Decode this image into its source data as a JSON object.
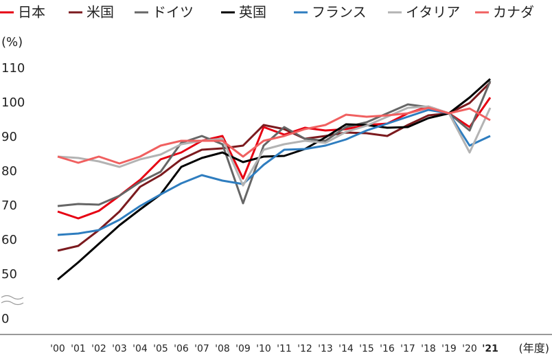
{
  "chart_data": {
    "type": "line",
    "y_unit": "(%)",
    "x_unit": "(年度)",
    "categories": [
      "'00",
      "'01",
      "'02",
      "'03",
      "'04",
      "'05",
      "'06",
      "'07",
      "'08",
      "'09",
      "'10",
      "'11",
      "'12",
      "'13",
      "'14",
      "'15",
      "'16",
      "'17",
      "'18",
      "'19",
      "'20",
      "'21"
    ],
    "ylim": [
      0,
      112
    ],
    "axis_break": [
      0,
      50
    ],
    "yticks": [
      0,
      50,
      60,
      70,
      80,
      90,
      100,
      110
    ],
    "series": [
      {
        "name": "日本",
        "color": "#e60012",
        "values": [
          68.4,
          66.4,
          68.6,
          73,
          77.6,
          83.6,
          85.6,
          89,
          90.4,
          78,
          93,
          90.8,
          92.8,
          92,
          92.4,
          93.6,
          94,
          97,
          99,
          97,
          93,
          101.6
        ]
      },
      {
        "name": "米国",
        "color": "#7b1a1e",
        "values": [
          57,
          58.4,
          63,
          68.4,
          75.6,
          79,
          83.6,
          86.4,
          86.8,
          87.6,
          93.6,
          92.4,
          89.6,
          90.4,
          91.4,
          91.2,
          90.4,
          93.6,
          96.4,
          97,
          100,
          106
        ]
      },
      {
        "name": "ドイツ",
        "color": "#666666",
        "values": [
          70,
          70.6,
          70.4,
          73,
          77,
          80,
          88.4,
          90.4,
          88,
          70.8,
          87.6,
          93,
          89.6,
          89,
          93,
          94.4,
          97,
          99.6,
          98.8,
          97,
          92,
          106.4
        ]
      },
      {
        "name": "英国",
        "color": "#000000",
        "values": [
          48.6,
          53.6,
          59,
          64.4,
          69,
          73.4,
          81.4,
          84,
          85.6,
          82.8,
          84.4,
          84.6,
          86.6,
          90,
          93.8,
          93.6,
          92.8,
          93,
          95.6,
          97,
          101.6,
          107
        ]
      },
      {
        "name": "フランス",
        "color": "#2e7dbf",
        "values": [
          61.6,
          62,
          63,
          66,
          70,
          73.4,
          76.6,
          79,
          77.4,
          76.4,
          82,
          86.4,
          86.6,
          87.6,
          89.4,
          92,
          94,
          96,
          98,
          97,
          87.6,
          90.4
        ]
      },
      {
        "name": "イタリア",
        "color": "#b3b3b3",
        "values": [
          84.4,
          84,
          83,
          81.4,
          83.6,
          85,
          88,
          89,
          89.6,
          76,
          86.4,
          88,
          89,
          88.4,
          91.6,
          93.4,
          96,
          98.6,
          99,
          97,
          85.6,
          98.6
        ]
      },
      {
        "name": "カナダ",
        "color": "#f06060",
        "values": [
          84.4,
          82.6,
          84.4,
          82.4,
          84.4,
          87.6,
          89,
          89,
          89,
          84.4,
          89,
          90.4,
          92.4,
          93.6,
          96.6,
          96,
          96.4,
          97,
          98.6,
          97,
          98.4,
          95
        ]
      }
    ]
  }
}
